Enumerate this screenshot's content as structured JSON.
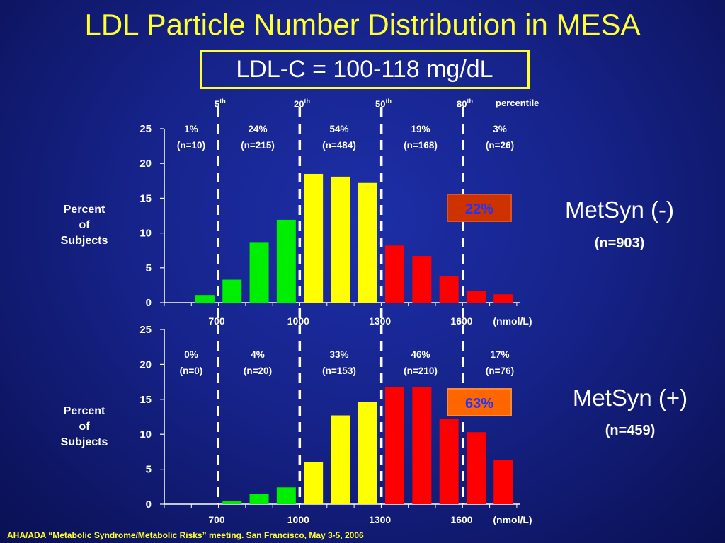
{
  "title": "LDL Particle Number Distribution in MESA",
  "subtitle": "LDL-C = 100-118 mg/dL",
  "percentile_labels": [
    {
      "base": "5",
      "sup": "th"
    },
    {
      "base": "20",
      "sup": "th"
    },
    {
      "base": "50",
      "sup": "th"
    },
    {
      "base": "80",
      "sup": "th"
    }
  ],
  "percentile_word": "percentile",
  "colors": {
    "green": "#00ee00",
    "yellow": "#ffff00",
    "red": "#ff0000",
    "title_yellow": "#ffff33",
    "callout_top": "#cc3300",
    "callout_bottom": "#ff6600",
    "callout_text": "#2233ff"
  },
  "chart_data": [
    {
      "type": "bar",
      "group": "MetSyn (-)",
      "group_n": "(n=903)",
      "ylabel": "Percent of Subjects",
      "ylabel_lines": [
        "Percent",
        "of",
        "Subjects"
      ],
      "ylim": [
        0,
        25
      ],
      "yticks": [
        "0",
        "5",
        "10",
        "15",
        "20",
        "25"
      ],
      "xticks": [
        "700",
        "1000",
        "1300",
        "1600"
      ],
      "xunit": "(nmol/L)",
      "cutpoints_nmol": [
        700,
        1000,
        1300,
        1600
      ],
      "bar_colors": [
        "green",
        "green",
        "green",
        "green",
        "yellow",
        "yellow",
        "yellow",
        "red",
        "red",
        "red",
        "red",
        "red"
      ],
      "values": [
        1.1,
        3.3,
        8.7,
        11.9,
        18.5,
        18.1,
        17.2,
        8.2,
        6.7,
        3.8,
        1.7,
        1.2
      ],
      "segments": [
        {
          "pct": "1%",
          "n": "(n=10)"
        },
        {
          "pct": "24%",
          "n": "(n=215)"
        },
        {
          "pct": "54%",
          "n": "(n=484)"
        },
        {
          "pct": "19%",
          "n": "(n=168)"
        },
        {
          "pct": "3%",
          "n": "(n=26)"
        }
      ],
      "callout": "22%"
    },
    {
      "type": "bar",
      "group": "MetSyn (+)",
      "group_n": "(n=459)",
      "ylabel": "Percent of Subjects",
      "ylabel_lines": [
        "Percent",
        "of",
        "Subjects"
      ],
      "ylim": [
        0,
        25
      ],
      "yticks": [
        "0",
        "5",
        "10",
        "15",
        "20",
        "25"
      ],
      "xticks": [
        "700",
        "1000",
        "1300",
        "1600"
      ],
      "xunit": "(nmol/L)",
      "cutpoints_nmol": [
        700,
        1000,
        1300,
        1600
      ],
      "bar_colors": [
        "green",
        "green",
        "green",
        "green",
        "yellow",
        "yellow",
        "yellow",
        "red",
        "red",
        "red",
        "red",
        "red"
      ],
      "values": [
        0.0,
        0.4,
        1.5,
        2.4,
        6.0,
        12.7,
        14.6,
        16.8,
        16.8,
        12.2,
        10.3,
        6.3
      ],
      "segments": [
        {
          "pct": "0%",
          "n": "(n=0)"
        },
        {
          "pct": "4%",
          "n": "(n=20)"
        },
        {
          "pct": "33%",
          "n": "(n=153)"
        },
        {
          "pct": "46%",
          "n": "(n=210)"
        },
        {
          "pct": "17%",
          "n": "(n=76)"
        }
      ],
      "callout": "63%"
    }
  ],
  "citation": "AHA/ADA “Metabolic Syndrome/Metabolic Risks” meeting. San Francisco, May 3-5, 2006"
}
